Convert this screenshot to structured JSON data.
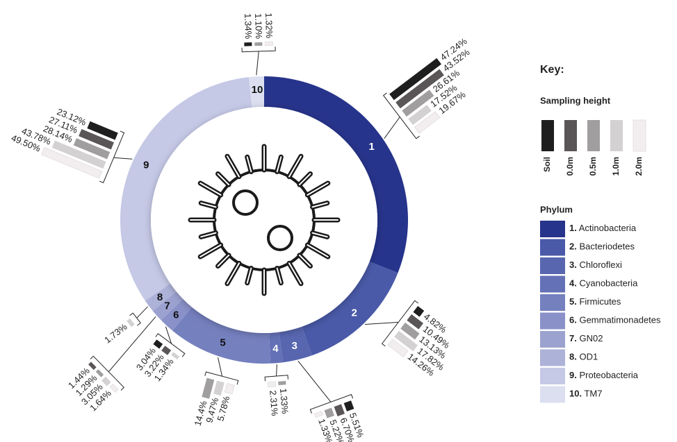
{
  "key": {
    "title": "Key:",
    "sampling_height": {
      "title": "Sampling height",
      "levels": [
        {
          "label": "Soil",
          "color": "#1e1e1e"
        },
        {
          "label": "0.0m",
          "color": "#5a5658"
        },
        {
          "label": "0.5m",
          "color": "#a09e9f"
        },
        {
          "label": "1.0m",
          "color": "#d3d1d2"
        },
        {
          "label": "2.0m",
          "color": "#f2eeef"
        }
      ]
    },
    "phylum": {
      "title": "Phylum",
      "items": [
        {
          "number": "1.",
          "name": "Actinobacteria"
        },
        {
          "number": "2.",
          "name": "Bacteriodetes"
        },
        {
          "number": "3.",
          "name": "Chloroflexi"
        },
        {
          "number": "4.",
          "name": "Cyanobacteria"
        },
        {
          "number": "5.",
          "name": "Firmicutes"
        },
        {
          "number": "6.",
          "name": "Gemmatimonadetes"
        },
        {
          "number": "7.",
          "name": "GN02"
        },
        {
          "number": "8.",
          "name": "OD1"
        },
        {
          "number": "9.",
          "name": "Proteobacteria"
        },
        {
          "number": "10.",
          "name": "TM7"
        }
      ]
    }
  },
  "chart_data": {
    "type": "donut",
    "categories": [
      "1",
      "2",
      "3",
      "4",
      "5",
      "6",
      "7",
      "8",
      "9",
      "10"
    ],
    "values": [
      31,
      13.6,
      3.3,
      1.4,
      11.7,
      1.7,
      1.4,
      1.4,
      32.8,
      1.7
    ],
    "colors": [
      "#27348b",
      "#4a5aa8",
      "#5866b0",
      "#6471b6",
      "#7580bf",
      "#8991c8",
      "#9ca2d0",
      "#adb2d9",
      "#c5c9e6",
      "#dcdff0"
    ],
    "groups": [
      {
        "values": [
          47.24,
          43.52,
          26.61,
          17.52,
          19.67
        ],
        "value_labels": [
          "47.24%",
          "43.52%",
          "26.61%",
          "17.52%",
          "19.67%"
        ],
        "colors": [
          "#1e1e1e",
          "#5a5658",
          "#a09e9f",
          "#d3d1d2",
          "#f2eeef"
        ]
      },
      {
        "values": [
          4.82,
          10.49,
          13.13,
          17.82,
          14.26
        ],
        "value_labels": [
          "4.82%",
          "10.49%",
          "13.13%",
          "17.82%",
          "14.26%"
        ],
        "colors": [
          "#1e1e1e",
          "#5a5658",
          "#a09e9f",
          "#d3d1d2",
          "#f2eeef"
        ]
      },
      {
        "values": [
          5.51,
          6.7,
          5.22,
          1.33
        ],
        "value_labels": [
          "5.51%",
          "6.70%",
          "5.22%",
          "1.33%"
        ],
        "colors": [
          "#1e1e1e",
          "#5a5658",
          "#a09e9f",
          "#f2eeef"
        ]
      },
      {
        "values": [
          1.33,
          2.31
        ],
        "value_labels": [
          "1.33%",
          "2.31%"
        ],
        "colors": [
          "#a09e9f",
          "#f2eeef"
        ]
      },
      {
        "values": [
          5.78,
          9.47,
          14.4
        ],
        "value_labels": [
          "5.78%",
          "9.47%",
          "14.4%"
        ],
        "colors": [
          "#f2eeef",
          "#d3d1d2",
          "#a09e9f"
        ]
      },
      {
        "values": [
          1.34,
          3.22,
          3.04
        ],
        "value_labels": [
          "1.34%",
          "3.22%",
          "3.04%"
        ],
        "colors": [
          "#d3d1d2",
          "#5a5658",
          "#1e1e1e"
        ]
      },
      {
        "values": [
          1.64,
          3.05,
          1.29,
          1.44
        ],
        "value_labels": [
          "1.64%",
          "3.05%",
          "1.29%",
          "1.44%"
        ],
        "colors": [
          "#f2eeef",
          "#d3d1d2",
          "#a09e9f",
          "#5a5658"
        ]
      },
      {
        "values": [
          1.73
        ],
        "value_labels": [
          "1.73%"
        ],
        "colors": [
          "#d3d1d2"
        ]
      },
      {
        "values": [
          49.5,
          43.78,
          28.14,
          27.11,
          23.12
        ],
        "value_labels": [
          "49.50%",
          "43.78%",
          "28.14%",
          "27.11%",
          "23.12%"
        ],
        "colors": [
          "#f2eeef",
          "#d3d1d2",
          "#a09e9f",
          "#5a5658",
          "#1e1e1e"
        ]
      },
      {
        "values": [
          1.34,
          1.1,
          1.32
        ],
        "value_labels": [
          "1.34%",
          "1.10%",
          "1.32%"
        ],
        "colors": [
          "#1e1e1e",
          "#a09e9f",
          "#f2eeef"
        ]
      }
    ]
  }
}
